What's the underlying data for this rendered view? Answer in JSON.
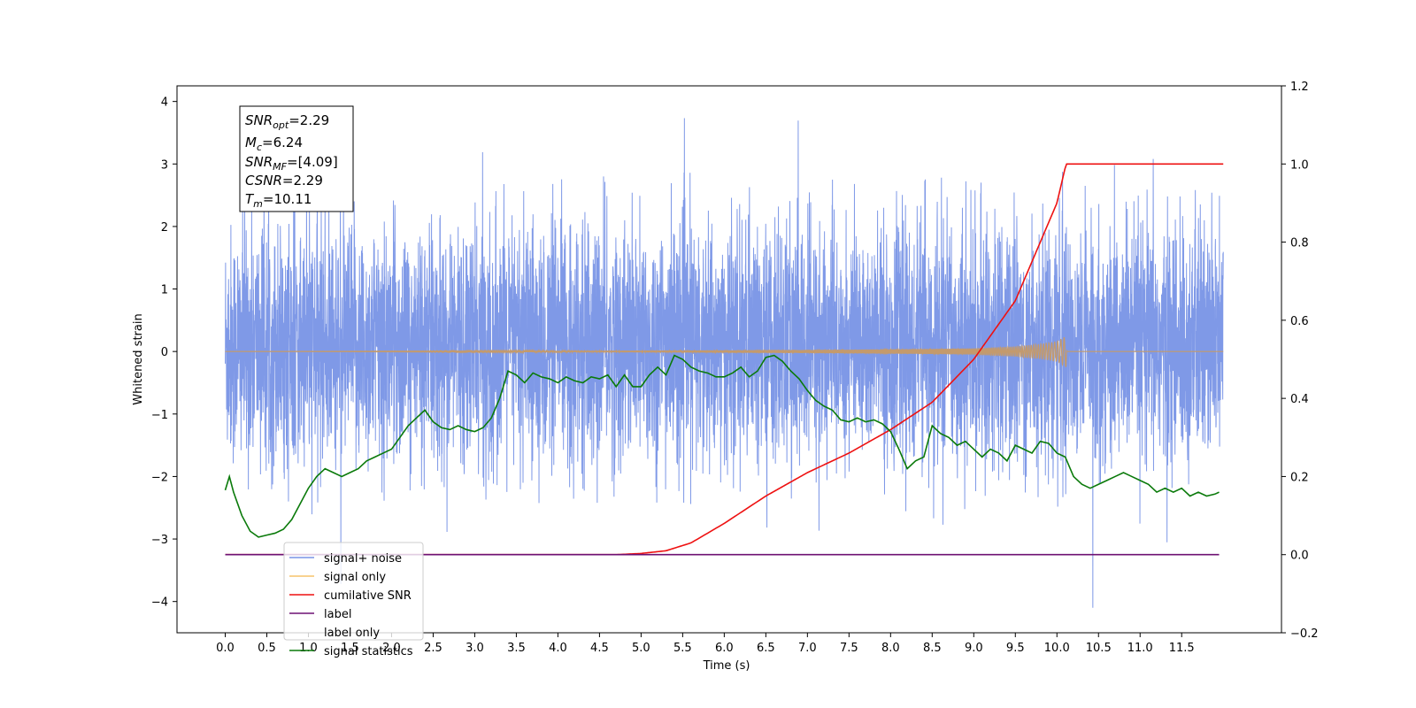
{
  "chart_data": {
    "type": "line",
    "xlabel": "Time (s)",
    "ylabel": "Whitened strain",
    "xlim": [
      -0.58,
      12.7
    ],
    "ylim": [
      -4.5,
      4.25
    ],
    "y2lim": [
      -0.2,
      1.2
    ],
    "x_ticks": [
      0.0,
      0.5,
      1.0,
      1.5,
      2.0,
      2.5,
      3.0,
      3.5,
      4.0,
      4.5,
      5.0,
      5.5,
      6.0,
      6.5,
      7.0,
      7.5,
      8.0,
      8.5,
      9.0,
      9.5,
      10.0,
      10.5,
      11.0,
      11.5
    ],
    "x_tick_labels": [
      "0.0",
      "0.5",
      "1.0",
      "1.5",
      "2.0",
      "2.5",
      "3.0",
      "3.5",
      "4.0",
      "4.5",
      "5.0",
      "5.5",
      "6.0",
      "6.5",
      "7.0",
      "7.5",
      "8.0",
      "8.5",
      "9.0",
      "9.5",
      "10.0",
      "10.5",
      "11.0",
      "11.5"
    ],
    "y_ticks": [
      -4,
      -3,
      -2,
      -1,
      0,
      1,
      2,
      3,
      4
    ],
    "y_tick_labels": [
      "−4",
      "−3",
      "−2",
      "−1",
      "0",
      "1",
      "2",
      "3",
      "4"
    ],
    "y2_ticks": [
      -0.2,
      0.0,
      0.2,
      0.4,
      0.6,
      0.8,
      1.0,
      1.2
    ],
    "y2_tick_labels": [
      "−0.2",
      "0.0",
      "0.2",
      "0.4",
      "0.6",
      "0.8",
      "1.0",
      "1.2"
    ],
    "legend_position": "lower-left",
    "info_box": {
      "snr_opt": {
        "name": "SNR",
        "sub": "opt",
        "value": "=2.29"
      },
      "mc": {
        "name": "M",
        "sub": "c",
        "value": "=6.24"
      },
      "snr_mf": {
        "name": "SNR",
        "sub": "MF",
        "value": "=[4.09]"
      },
      "csnr": {
        "name": "CSNR",
        "value": "=2.29"
      },
      "tm": {
        "name": "T",
        "sub": "m",
        "value": "=10.11"
      }
    },
    "series": [
      {
        "name": "signal+ noise",
        "color": "#7893e6",
        "axis": "left",
        "note": "noise time series, approx mean 0.1, std 0.95, range -4.1 to 3.9",
        "x_range": [
          0.0,
          12.0
        ],
        "mean": 0.1,
        "spread": 0.95,
        "min": -4.1,
        "max": 3.88
      },
      {
        "name": "signal only",
        "color": "#f5c36b",
        "axis": "left",
        "x": [
          0.0,
          4.0,
          6.0,
          7.5,
          8.5,
          9.0,
          9.5,
          9.8,
          10.0,
          10.11,
          10.12,
          12.0
        ],
        "envelope": [
          0.0,
          0.01,
          0.02,
          0.03,
          0.04,
          0.05,
          0.08,
          0.12,
          0.16,
          0.25,
          0.0,
          0.0
        ]
      },
      {
        "name": "cumilative SNR",
        "color": "#ee1111",
        "axis": "right",
        "x": [
          0.0,
          4.7,
          5.0,
          5.3,
          5.6,
          6.0,
          6.5,
          7.0,
          7.5,
          8.0,
          8.5,
          9.0,
          9.5,
          9.8,
          10.0,
          10.11,
          12.0
        ],
        "values": [
          0.0,
          0.0,
          0.003,
          0.01,
          0.03,
          0.08,
          0.15,
          0.21,
          0.26,
          0.32,
          0.39,
          0.5,
          0.65,
          0.8,
          0.9,
          1.0,
          1.0
        ]
      },
      {
        "name": "label",
        "color": "#6e1173",
        "axis": "right",
        "x": [
          0.0,
          11.95
        ],
        "values": [
          0.0,
          0.0
        ]
      },
      {
        "name": "label only",
        "color": "#ffffff",
        "axis": "right",
        "x": [],
        "values": []
      },
      {
        "name": "signal statistics",
        "color": "#0a7a0a",
        "axis": "right",
        "x": [
          0.0,
          0.05,
          0.1,
          0.2,
          0.3,
          0.4,
          0.5,
          0.6,
          0.7,
          0.8,
          0.9,
          1.0,
          1.1,
          1.2,
          1.3,
          1.4,
          1.5,
          1.6,
          1.7,
          1.8,
          1.9,
          2.0,
          2.1,
          2.2,
          2.3,
          2.4,
          2.5,
          2.6,
          2.7,
          2.8,
          2.9,
          3.0,
          3.1,
          3.2,
          3.3,
          3.4,
          3.5,
          3.6,
          3.7,
          3.8,
          3.9,
          4.0,
          4.1,
          4.2,
          4.3,
          4.4,
          4.5,
          4.6,
          4.7,
          4.8,
          4.9,
          5.0,
          5.1,
          5.2,
          5.3,
          5.4,
          5.5,
          5.6,
          5.7,
          5.8,
          5.9,
          6.0,
          6.1,
          6.2,
          6.3,
          6.4,
          6.5,
          6.6,
          6.7,
          6.8,
          6.9,
          7.0,
          7.1,
          7.2,
          7.3,
          7.4,
          7.5,
          7.6,
          7.7,
          7.8,
          7.9,
          8.0,
          8.1,
          8.2,
          8.3,
          8.4,
          8.5,
          8.6,
          8.7,
          8.8,
          8.9,
          9.0,
          9.1,
          9.2,
          9.3,
          9.4,
          9.5,
          9.6,
          9.7,
          9.8,
          9.9,
          10.0,
          10.1,
          10.2,
          10.3,
          10.4,
          10.5,
          10.6,
          10.7,
          10.8,
          10.9,
          11.0,
          11.1,
          11.2,
          11.3,
          11.4,
          11.5,
          11.6,
          11.7,
          11.8,
          11.9,
          11.95
        ],
        "values": [
          0.165,
          0.2,
          0.16,
          0.1,
          0.06,
          0.045,
          0.05,
          0.055,
          0.065,
          0.09,
          0.13,
          0.17,
          0.2,
          0.22,
          0.21,
          0.2,
          0.21,
          0.22,
          0.24,
          0.25,
          0.26,
          0.27,
          0.3,
          0.33,
          0.35,
          0.37,
          0.34,
          0.325,
          0.32,
          0.33,
          0.32,
          0.315,
          0.325,
          0.35,
          0.4,
          0.47,
          0.46,
          0.44,
          0.465,
          0.455,
          0.45,
          0.44,
          0.455,
          0.445,
          0.44,
          0.455,
          0.45,
          0.46,
          0.43,
          0.46,
          0.43,
          0.43,
          0.46,
          0.48,
          0.46,
          0.51,
          0.5,
          0.48,
          0.47,
          0.465,
          0.455,
          0.455,
          0.465,
          0.48,
          0.455,
          0.47,
          0.505,
          0.51,
          0.495,
          0.47,
          0.45,
          0.42,
          0.395,
          0.38,
          0.37,
          0.345,
          0.34,
          0.35,
          0.34,
          0.345,
          0.335,
          0.315,
          0.27,
          0.22,
          0.24,
          0.25,
          0.33,
          0.31,
          0.3,
          0.28,
          0.29,
          0.27,
          0.25,
          0.27,
          0.26,
          0.24,
          0.28,
          0.27,
          0.26,
          0.29,
          0.285,
          0.26,
          0.25,
          0.2,
          0.18,
          0.17,
          0.18,
          0.19,
          0.2,
          0.21,
          0.2,
          0.19,
          0.18,
          0.16,
          0.17,
          0.16,
          0.17,
          0.15,
          0.16,
          0.15,
          0.155,
          0.16
        ]
      }
    ]
  }
}
